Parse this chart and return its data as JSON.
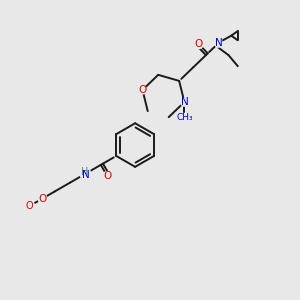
{
  "bg_color": "#e8e8e8",
  "bond_color": "#1a1a1a",
  "atom_colors": {
    "O": "#dd0000",
    "N": "#0000cc",
    "H": "#4a8888",
    "C": "#1a1a1a"
  },
  "figsize": [
    3.0,
    3.0
  ],
  "dpi": 100,
  "lw": 1.4
}
